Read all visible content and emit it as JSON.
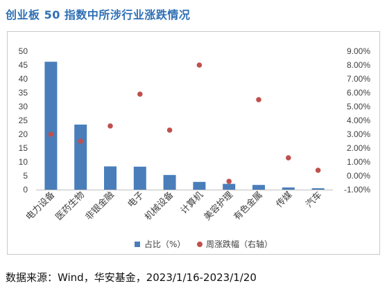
{
  "title": "创业板 50 指数中所涉行业涨跌情况",
  "source": "数据来源：Wind，华安基金，2023/1/16-2023/1/20",
  "colors": {
    "bar": "#4a7ebb",
    "point": "#c0504d",
    "title": "#2e6fb4",
    "axis": "#404040"
  },
  "chart_data": {
    "type": "bar",
    "categories": [
      "电力设备",
      "医药生物",
      "非银金融",
      "电子",
      "机械设备",
      "计算机",
      "美容护理",
      "有色金属",
      "传媒",
      "汽车"
    ],
    "series": [
      {
        "name": "占比（%）",
        "type": "bar",
        "axis": "left",
        "values": [
          46.2,
          23.5,
          8.4,
          8.3,
          5.3,
          2.8,
          2.1,
          1.7,
          0.8,
          0.5
        ]
      },
      {
        "name": "周涨跌幅（右轴）",
        "type": "scatter",
        "axis": "right",
        "values": [
          3.0,
          2.5,
          3.6,
          5.9,
          3.3,
          8.0,
          -0.4,
          5.5,
          1.3,
          0.4
        ]
      }
    ],
    "y_left": {
      "min": 0,
      "max": 50,
      "step": 5,
      "ticks": [
        "0",
        "5",
        "10",
        "15",
        "20",
        "25",
        "30",
        "35",
        "40",
        "45",
        "50"
      ]
    },
    "y_right": {
      "min": -1,
      "max": 9,
      "step": 1,
      "ticks": [
        "-1.00%",
        "0.00%",
        "1.00%",
        "2.00%",
        "3.00%",
        "4.00%",
        "5.00%",
        "6.00%",
        "7.00%",
        "8.00%",
        "9.00%"
      ]
    },
    "legend_position": "bottom",
    "grid": false
  }
}
